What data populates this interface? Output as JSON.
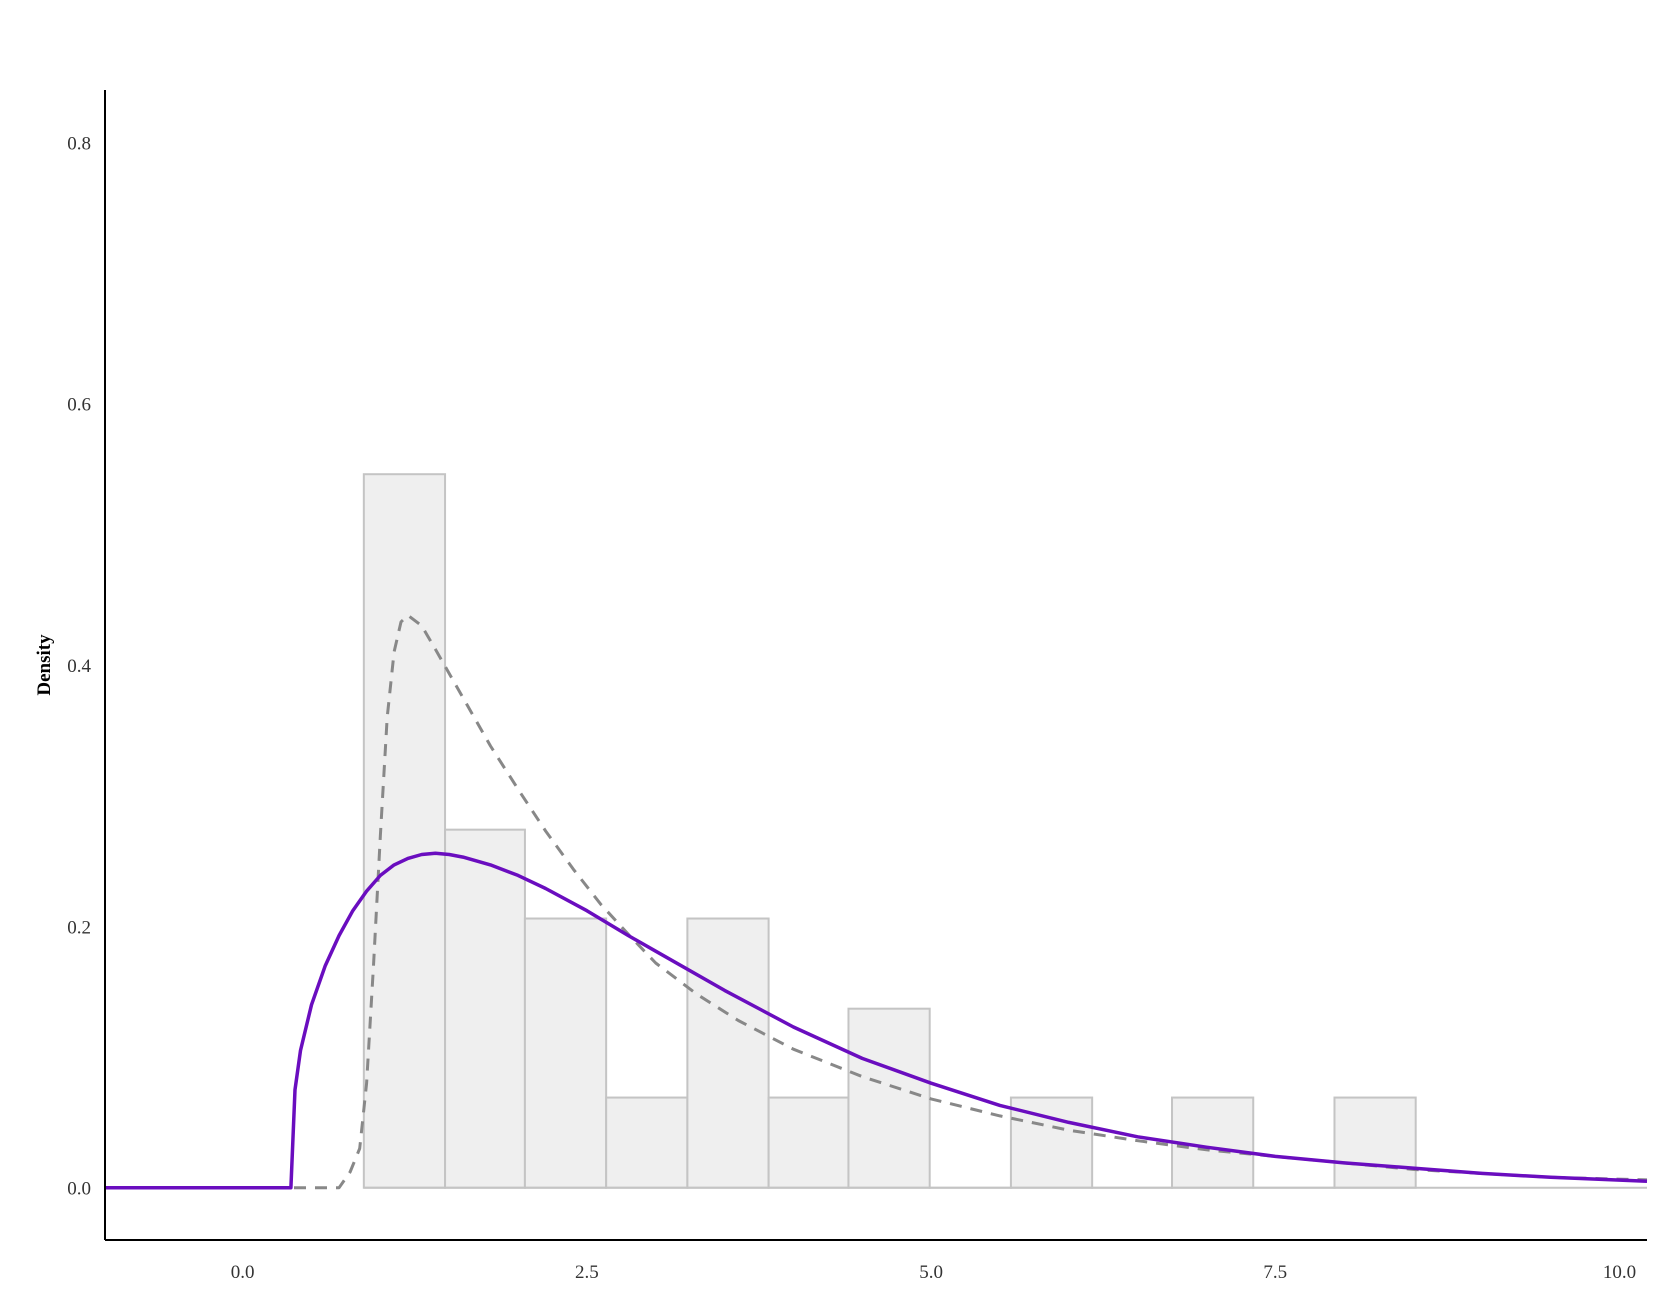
{
  "chart_data": {
    "type": "bar",
    "title": "",
    "xlabel": "",
    "ylabel": "Density",
    "xlim": [
      -1.0,
      10.2
    ],
    "ylim": [
      -0.04,
      0.84
    ],
    "x_ticks": [
      {
        "value": 0.0,
        "label": "0.0"
      },
      {
        "value": 2.5,
        "label": "2.5"
      },
      {
        "value": 5.0,
        "label": "5.0"
      },
      {
        "value": 7.5,
        "label": "7.5"
      },
      {
        "value": 10.0,
        "label": "10.0"
      }
    ],
    "y_ticks": [
      {
        "value": 0.0,
        "label": "0.0"
      },
      {
        "value": 0.2,
        "label": "0.2"
      },
      {
        "value": 0.4,
        "label": "0.4"
      },
      {
        "value": 0.6,
        "label": "0.6"
      },
      {
        "value": 0.8,
        "label": "0.8"
      }
    ],
    "grid": false,
    "histogram": {
      "fill": "#efefef",
      "stroke": "#c4c4c4",
      "bins": [
        {
          "x0": 0.88,
          "x1": 1.47,
          "density": 0.546
        },
        {
          "x0": 1.47,
          "x1": 2.05,
          "density": 0.274
        },
        {
          "x0": 2.05,
          "x1": 2.64,
          "density": 0.206
        },
        {
          "x0": 2.64,
          "x1": 3.23,
          "density": 0.069
        },
        {
          "x0": 3.23,
          "x1": 3.82,
          "density": 0.206
        },
        {
          "x0": 3.82,
          "x1": 4.4,
          "density": 0.069
        },
        {
          "x0": 4.4,
          "x1": 4.99,
          "density": 0.137
        },
        {
          "x0": 4.99,
          "x1": 5.58,
          "density": 0.0
        },
        {
          "x0": 5.58,
          "x1": 6.17,
          "density": 0.069
        },
        {
          "x0": 6.17,
          "x1": 6.75,
          "density": 0.0
        },
        {
          "x0": 6.75,
          "x1": 7.34,
          "density": 0.069
        },
        {
          "x0": 7.34,
          "x1": 7.93,
          "density": 0.0
        },
        {
          "x0": 7.93,
          "x1": 8.52,
          "density": 0.069
        }
      ]
    },
    "series": [
      {
        "style": "dashed",
        "color": "#888888",
        "points": [
          [
            -1.0,
            0.0
          ],
          [
            0.7,
            0.0
          ],
          [
            0.78,
            0.012
          ],
          [
            0.85,
            0.03
          ],
          [
            0.9,
            0.08
          ],
          [
            0.95,
            0.17
          ],
          [
            1.0,
            0.27
          ],
          [
            1.05,
            0.36
          ],
          [
            1.1,
            0.41
          ],
          [
            1.15,
            0.433
          ],
          [
            1.2,
            0.438
          ],
          [
            1.3,
            0.43
          ],
          [
            1.4,
            0.412
          ],
          [
            1.6,
            0.375
          ],
          [
            1.8,
            0.338
          ],
          [
            2.0,
            0.305
          ],
          [
            2.2,
            0.273
          ],
          [
            2.4,
            0.244
          ],
          [
            2.6,
            0.217
          ],
          [
            2.8,
            0.194
          ],
          [
            3.0,
            0.172
          ],
          [
            3.3,
            0.148
          ],
          [
            3.6,
            0.128
          ],
          [
            4.0,
            0.106
          ],
          [
            4.5,
            0.085
          ],
          [
            5.0,
            0.068
          ],
          [
            5.5,
            0.055
          ],
          [
            6.0,
            0.044
          ],
          [
            6.5,
            0.036
          ],
          [
            7.0,
            0.029
          ],
          [
            7.5,
            0.024
          ],
          [
            8.0,
            0.019
          ],
          [
            8.5,
            0.014
          ],
          [
            9.0,
            0.011
          ],
          [
            9.5,
            0.008
          ],
          [
            10.2,
            0.006
          ]
        ]
      },
      {
        "style": "solid",
        "color": "#6a0dbf",
        "points": [
          [
            -1.0,
            0.0
          ],
          [
            0.35,
            0.0
          ],
          [
            0.38,
            0.075
          ],
          [
            0.42,
            0.105
          ],
          [
            0.5,
            0.14
          ],
          [
            0.6,
            0.17
          ],
          [
            0.7,
            0.193
          ],
          [
            0.8,
            0.212
          ],
          [
            0.9,
            0.227
          ],
          [
            1.0,
            0.239
          ],
          [
            1.1,
            0.247
          ],
          [
            1.2,
            0.252
          ],
          [
            1.3,
            0.255
          ],
          [
            1.4,
            0.256
          ],
          [
            1.5,
            0.255
          ],
          [
            1.6,
            0.253
          ],
          [
            1.8,
            0.247
          ],
          [
            2.0,
            0.239
          ],
          [
            2.2,
            0.229
          ],
          [
            2.5,
            0.212
          ],
          [
            2.8,
            0.193
          ],
          [
            3.0,
            0.181
          ],
          [
            3.5,
            0.151
          ],
          [
            4.0,
            0.123
          ],
          [
            4.5,
            0.099
          ],
          [
            5.0,
            0.08
          ],
          [
            5.5,
            0.063
          ],
          [
            6.0,
            0.05
          ],
          [
            6.5,
            0.039
          ],
          [
            7.0,
            0.031
          ],
          [
            7.5,
            0.024
          ],
          [
            8.0,
            0.019
          ],
          [
            8.5,
            0.015
          ],
          [
            9.0,
            0.011
          ],
          [
            9.5,
            0.008
          ],
          [
            10.2,
            0.005
          ]
        ]
      }
    ]
  }
}
